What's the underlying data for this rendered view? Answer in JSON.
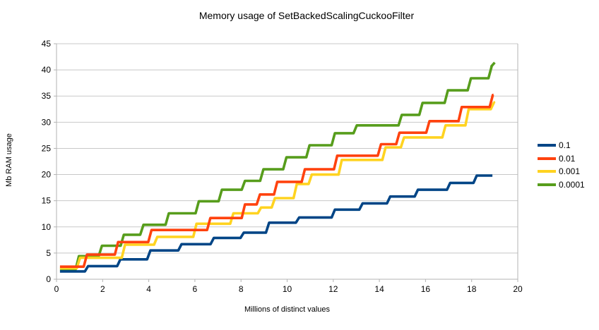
{
  "title": "Memory usage of SetBackedScalingCuckooFilter",
  "chart_data": {
    "type": "line",
    "step": true,
    "title": "Memory usage of SetBackedScalingCuckooFilter",
    "xlabel": "Millions of distinct values",
    "ylabel": "Mb RAM usage",
    "xlim": [
      0,
      20
    ],
    "ylim": [
      0,
      45
    ],
    "xticks": [
      0,
      2,
      4,
      6,
      8,
      10,
      12,
      14,
      16,
      18,
      20
    ],
    "yticks": [
      0,
      5,
      10,
      15,
      20,
      25,
      30,
      35,
      40,
      45
    ],
    "grid": "horizontal",
    "legend_position": "right",
    "axis_color": "#b3b3b3",
    "gridline_color": "#c8c8c8",
    "series": [
      {
        "name": "0.1",
        "color": "#004586",
        "end_x": 18.9,
        "points": [
          [
            0.15,
            1.5
          ],
          [
            1.3,
            2.5
          ],
          [
            2.7,
            3.8
          ],
          [
            4.0,
            5.5
          ],
          [
            5.35,
            6.7
          ],
          [
            6.75,
            7.9
          ],
          [
            8.05,
            8.9
          ],
          [
            9.15,
            10.8
          ],
          [
            10.45,
            11.8
          ],
          [
            12.0,
            13.3
          ],
          [
            13.2,
            14.5
          ],
          [
            14.4,
            15.8
          ],
          [
            15.6,
            17.1
          ],
          [
            17.0,
            18.4
          ],
          [
            18.15,
            19.8
          ]
        ]
      },
      {
        "name": "0.01",
        "color": "#ff420e",
        "end_x": 18.95,
        "points": [
          [
            0.15,
            2.4
          ],
          [
            1.25,
            4.7
          ],
          [
            2.6,
            7.1
          ],
          [
            4.05,
            9.4
          ],
          [
            6.6,
            11.7
          ],
          [
            8.1,
            14.3
          ],
          [
            8.75,
            16.2
          ],
          [
            9.5,
            18.6
          ],
          [
            10.7,
            21.0
          ],
          [
            12.1,
            23.6
          ],
          [
            14.0,
            25.8
          ],
          [
            14.8,
            28.0
          ],
          [
            16.1,
            30.2
          ],
          [
            17.5,
            32.9
          ],
          [
            18.85,
            35.2
          ]
        ]
      },
      {
        "name": "0.001",
        "color": "#ffd320",
        "end_x": 18.95,
        "points": [
          [
            0.15,
            2.1
          ],
          [
            0.95,
            4.1
          ],
          [
            2.9,
            6.6
          ],
          [
            4.3,
            8.1
          ],
          [
            6.0,
            10.6
          ],
          [
            7.6,
            12.6
          ],
          [
            8.8,
            13.7
          ],
          [
            9.4,
            15.5
          ],
          [
            10.35,
            18.2
          ],
          [
            11.0,
            20.0
          ],
          [
            12.3,
            22.8
          ],
          [
            14.2,
            25.2
          ],
          [
            15.0,
            27.1
          ],
          [
            16.8,
            29.4
          ],
          [
            17.8,
            32.5
          ],
          [
            18.9,
            33.8
          ]
        ]
      },
      {
        "name": "0.0001",
        "color": "#579d1c",
        "end_x": 19.0,
        "points": [
          [
            0.15,
            1.9
          ],
          [
            0.9,
            4.4
          ],
          [
            1.9,
            6.4
          ],
          [
            2.85,
            8.5
          ],
          [
            3.7,
            10.4
          ],
          [
            4.8,
            12.6
          ],
          [
            6.1,
            14.9
          ],
          [
            7.1,
            17.1
          ],
          [
            8.1,
            18.8
          ],
          [
            8.9,
            21.0
          ],
          [
            9.9,
            23.3
          ],
          [
            10.9,
            25.6
          ],
          [
            12.0,
            27.9
          ],
          [
            12.95,
            29.4
          ],
          [
            14.9,
            31.4
          ],
          [
            15.8,
            33.7
          ],
          [
            16.9,
            36.1
          ],
          [
            17.9,
            38.4
          ],
          [
            18.8,
            40.7
          ],
          [
            18.93,
            41.4
          ]
        ]
      }
    ]
  }
}
